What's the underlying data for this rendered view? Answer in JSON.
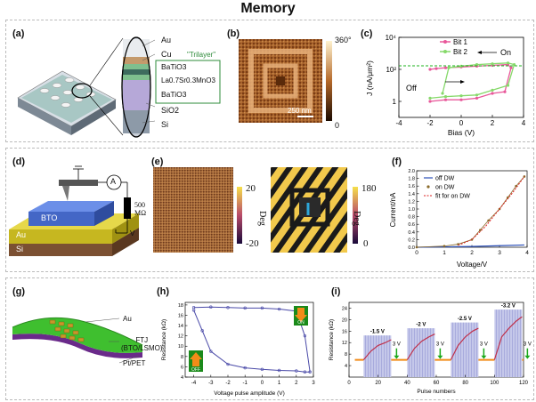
{
  "title": "Memory",
  "panels": {
    "a": {
      "label": "(a)",
      "layers": [
        "Au",
        "Cu",
        "BaTiO3",
        "La0.7Sr0.3MnO3",
        "BaTiO3",
        "SiO2",
        "Si"
      ],
      "trilayer_label": "\"Trilayer\""
    },
    "b": {
      "label": "(b)",
      "scalebar": "250 nm",
      "colorbar_max": "360°",
      "colorbar_min": "0"
    },
    "c": {
      "label": "(c)",
      "ylabel": "J (nA/μm²)",
      "xlabel": "Bias (V)",
      "xticks": [
        "-4",
        "-2",
        "0",
        "2",
        "4"
      ],
      "yticks": [
        "10⁴",
        "10²",
        "1"
      ],
      "legend": [
        "Bit 1",
        "Bit 2"
      ],
      "annotations": [
        "On",
        "Off"
      ]
    },
    "d": {
      "label": "(d)",
      "blocks": [
        "BTO",
        "Au",
        "Si"
      ],
      "ammeter": "A",
      "resistor": "500\nMΩ",
      "voltage": "V"
    },
    "e": {
      "label": "(e)",
      "left_colorbar": {
        "max": "20",
        "min": "-20",
        "unit": "Deg"
      },
      "right_colorbar": {
        "max": "180",
        "min": "0",
        "unit": "Deg"
      }
    },
    "f": {
      "label": "(f)",
      "ylabel": "Current/nA",
      "xlabel": "Voltage/V",
      "xticks": [
        "0",
        "1",
        "2",
        "3",
        "4"
      ],
      "yticks": [
        "0.0",
        "0.2",
        "0.4",
        "0.6",
        "0.8",
        "1.0",
        "1.2",
        "1.4",
        "1.6",
        "1.8",
        "2.0"
      ],
      "legend": [
        "off DW",
        "on DW",
        "fit for on DW"
      ]
    },
    "g": {
      "label": "(g)",
      "layers": [
        "Au",
        "FTJ\n(BTO/LSMO)",
        "Pt/PET"
      ]
    },
    "h": {
      "label": "(h)",
      "ylabel": "Resistance (kΩ)",
      "xlabel": "Voltage pulse amplitude (V)",
      "xticks": [
        "-4",
        "-3",
        "-2",
        "-1",
        "0",
        "1",
        "2",
        "3"
      ],
      "yticks": [
        "4",
        "6",
        "8",
        "10",
        "12",
        "14",
        "16",
        "18"
      ],
      "states": [
        "ON",
        "OFF"
      ]
    },
    "i": {
      "label": "(i)",
      "ylabel": "Resistance (kΩ)",
      "xlabel": "Pulse numbers",
      "xticks": [
        "0",
        "20",
        "40",
        "60",
        "80",
        "100",
        "120"
      ],
      "yticks": [
        "4",
        "8",
        "12",
        "16",
        "20",
        "24"
      ],
      "pulse_labels": [
        "-1.5 V",
        "-2 V",
        "-2.5 V",
        "-3.2 V"
      ],
      "reset_labels": [
        "3 V",
        "3 V",
        "3 V",
        "3 V"
      ]
    }
  },
  "chart_data": [
    {
      "type": "line",
      "title": "(c)",
      "xlabel": "Bias (V)",
      "ylabel": "J (nA/μm²)",
      "xlim": [
        -4,
        4
      ],
      "ylim_log10": [
        -1,
        4
      ],
      "series": [
        {
          "name": "Bit 1",
          "x": [
            -2,
            -1,
            0,
            1,
            2,
            2.8,
            3.2,
            3,
            2,
            1,
            0,
            -1,
            -1.6,
            -2
          ],
          "log10_y": [
            0,
            0.1,
            0.1,
            0.2,
            0.5,
            0.6,
            2.1,
            2.3,
            2.25,
            2.2,
            2.15,
            2.1,
            2.05,
            2.0
          ]
        },
        {
          "name": "Bit 2",
          "x": [
            -2,
            -1,
            0,
            1,
            2,
            3,
            3.4,
            3,
            2,
            1,
            0,
            -0.8,
            -1.2
          ],
          "log10_y": [
            0.2,
            0.3,
            0.35,
            0.4,
            0.7,
            1.0,
            2.3,
            2.4,
            2.35,
            2.3,
            2.2,
            2.1,
            0.5
          ]
        }
      ]
    },
    {
      "type": "line",
      "title": "(f)",
      "xlabel": "Voltage/V",
      "ylabel": "Current/nA",
      "xlim": [
        0,
        4
      ],
      "ylim": [
        0,
        2
      ],
      "series": [
        {
          "name": "off DW",
          "x": [
            0,
            1,
            2,
            3,
            3.9
          ],
          "y": [
            0.0,
            0.01,
            0.02,
            0.04,
            0.06
          ]
        },
        {
          "name": "on DW",
          "x": [
            0,
            1,
            1.5,
            2,
            2.3,
            2.6,
            3,
            3.3,
            3.6,
            3.9
          ],
          "y": [
            0.0,
            0.03,
            0.08,
            0.2,
            0.45,
            0.7,
            1.0,
            1.3,
            1.6,
            1.85
          ]
        },
        {
          "name": "fit for on DW",
          "x": [
            1.5,
            2,
            2.5,
            3,
            3.5,
            3.9
          ],
          "y": [
            0.05,
            0.2,
            0.55,
            1.0,
            1.45,
            1.85
          ]
        }
      ]
    },
    {
      "type": "line",
      "title": "(h)",
      "xlabel": "Voltage pulse amplitude (V)",
      "ylabel": "Resistance (kΩ)",
      "xlim": [
        -4.5,
        3
      ],
      "ylim": [
        4,
        18
      ],
      "series": [
        {
          "name": "sweep",
          "x": [
            -4,
            -3,
            -2,
            -1,
            0,
            1,
            2,
            2.5,
            2.8,
            2.5,
            2,
            1,
            0,
            -1,
            -2,
            -3,
            -3.5,
            -4
          ],
          "y": [
            17.5,
            17.6,
            17.5,
            17.4,
            17.4,
            17.2,
            16.8,
            12,
            5,
            5,
            5.2,
            5.3,
            5.5,
            5.8,
            6.5,
            9,
            13,
            17
          ]
        }
      ]
    },
    {
      "type": "line",
      "title": "(i)",
      "xlabel": "Pulse numbers",
      "ylabel": "Resistance (kΩ)",
      "xlim": [
        0,
        120
      ],
      "ylim": [
        4,
        24
      ],
      "series": [
        {
          "name": "-1.5 V",
          "x": [
            10,
            15,
            20,
            25,
            29
          ],
          "y": [
            6,
            9,
            11,
            12,
            13
          ]
        },
        {
          "name": "-2 V",
          "x": [
            40,
            45,
            50,
            55,
            59
          ],
          "y": [
            6,
            10,
            12.5,
            14,
            15
          ]
        },
        {
          "name": "-2.5 V",
          "x": [
            70,
            75,
            80,
            85,
            89
          ],
          "y": [
            6,
            11,
            14,
            16,
            17
          ]
        },
        {
          "name": "-3.2 V",
          "x": [
            100,
            105,
            110,
            115,
            119
          ],
          "y": [
            6,
            14,
            17,
            19.5,
            21
          ]
        }
      ]
    }
  ]
}
